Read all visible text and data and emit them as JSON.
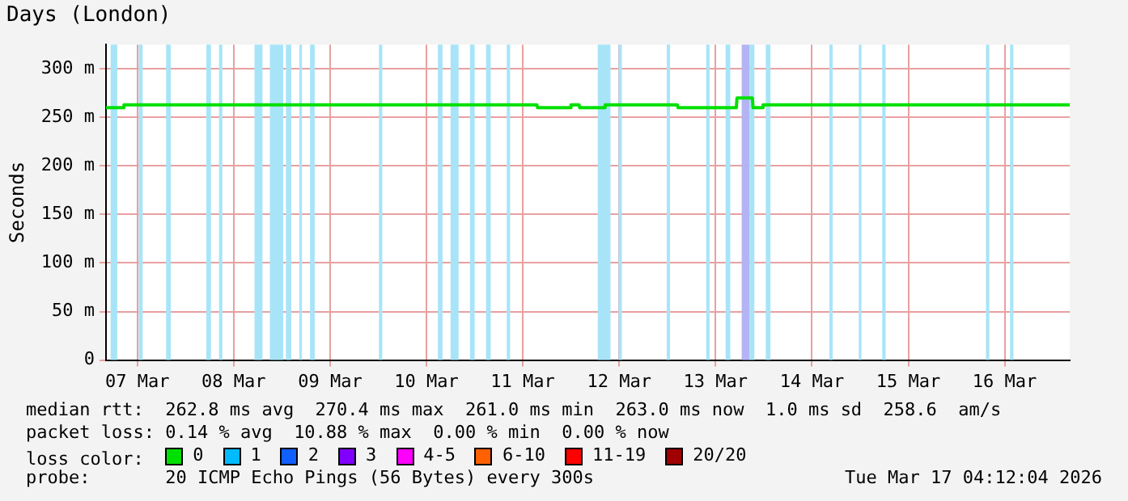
{
  "chart_data": {
    "type": "line",
    "title": "Days (London)",
    "ylabel": "Seconds",
    "xlim": [
      "2026-03-07T04:12",
      "2026-03-17T04:12"
    ],
    "xticks": [
      {
        "value": "2026-03-07T12:00",
        "label": "07 Mar"
      },
      {
        "value": "2026-03-08T12:00",
        "label": "08 Mar"
      },
      {
        "value": "2026-03-09T12:00",
        "label": "09 Mar"
      },
      {
        "value": "2026-03-10T12:00",
        "label": "10 Mar"
      },
      {
        "value": "2026-03-11T12:00",
        "label": "11 Mar"
      },
      {
        "value": "2026-03-12T12:00",
        "label": "12 Mar"
      },
      {
        "value": "2026-03-13T12:00",
        "label": "13 Mar"
      },
      {
        "value": "2026-03-14T12:00",
        "label": "14 Mar"
      },
      {
        "value": "2026-03-15T12:00",
        "label": "15 Mar"
      },
      {
        "value": "2026-03-16T12:00",
        "label": "16 Mar"
      }
    ],
    "ylim": [
      0,
      325
    ],
    "yticks": [
      0,
      {
        "value": 50,
        "label": "50 m"
      },
      {
        "value": 100,
        "label": "100 m"
      },
      {
        "value": 150,
        "label": "150 m"
      },
      {
        "value": 200,
        "label": "200 m"
      },
      {
        "value": 250,
        "label": "250 m"
      },
      {
        "value": 300,
        "label": "300 m"
      }
    ],
    "grid": true,
    "legend": "bottom left",
    "series": [
      {
        "name": "0",
        "color": "#00e000",
        "x": [
          "2026-03-07T04:12",
          "2026-03-07T08:30",
          "2026-03-07T08:40",
          "2026-03-11T15:30",
          "2026-03-11T15:40",
          "2026-03-11T23:50",
          "2026-03-12T00:00",
          "2026-03-12T02:00",
          "2026-03-12T02:10",
          "2026-03-12T08:10",
          "2026-03-12T08:30",
          "2026-03-13T02:30",
          "2026-03-13T02:40",
          "2026-03-13T17:10",
          "2026-03-13T17:20",
          "2026-03-13T21:10",
          "2026-03-13T21:20",
          "2026-03-13T23:40",
          "2026-03-13T23:50",
          "2026-03-17T04:12"
        ],
        "values": [
          260,
          260,
          263,
          263,
          260,
          260,
          263,
          263,
          260,
          260,
          263,
          263,
          260,
          260,
          270,
          270,
          260,
          260,
          263,
          263
        ]
      },
      {
        "name": "1",
        "color": "#00bbff"
      },
      {
        "name": "2",
        "color": "#1060ff"
      },
      {
        "name": "3",
        "color": "#8000ff"
      },
      {
        "name": "4-5",
        "color": "#ff00ff"
      },
      {
        "name": "6-10",
        "color": "#ff6000"
      },
      {
        "name": "11-19",
        "color": "#ff0000"
      },
      {
        "name": "20/20",
        "color": "#a00000"
      }
    ],
    "bands": [
      {
        "axis": "x",
        "from": "2026-03-07T05:20",
        "to": "2026-03-07T07:00",
        "color": "#a8e4f8"
      },
      {
        "axis": "x",
        "from": "2026-03-07T12:20",
        "to": "2026-03-07T13:20",
        "color": "#a8e4f8"
      },
      {
        "axis": "x",
        "from": "2026-03-07T19:10",
        "to": "2026-03-07T20:20",
        "color": "#a8e4f8"
      },
      {
        "axis": "x",
        "from": "2026-03-08T05:10",
        "to": "2026-03-08T06:20",
        "color": "#a8e4f8"
      },
      {
        "axis": "x",
        "from": "2026-03-08T08:20",
        "to": "2026-03-08T09:10",
        "color": "#a8e4f8"
      },
      {
        "axis": "x",
        "from": "2026-03-08T17:10",
        "to": "2026-03-08T19:10",
        "color": "#a8e4f8"
      },
      {
        "axis": "x",
        "from": "2026-03-08T21:00",
        "to": "2026-03-09T00:20",
        "color": "#a8e4f8"
      },
      {
        "axis": "x",
        "from": "2026-03-09T01:00",
        "to": "2026-03-09T02:20",
        "color": "#a8e4f8"
      },
      {
        "axis": "x",
        "from": "2026-03-09T04:20",
        "to": "2026-03-09T05:00",
        "color": "#a8e4f8"
      },
      {
        "axis": "x",
        "from": "2026-03-09T07:00",
        "to": "2026-03-09T08:10",
        "color": "#a8e4f8"
      },
      {
        "axis": "x",
        "from": "2026-03-10T00:10",
        "to": "2026-03-10T01:00",
        "color": "#a8e4f8"
      },
      {
        "axis": "x",
        "from": "2026-03-10T14:50",
        "to": "2026-03-10T16:00",
        "color": "#a8e4f8"
      },
      {
        "axis": "x",
        "from": "2026-03-10T18:00",
        "to": "2026-03-10T20:00",
        "color": "#a8e4f8"
      },
      {
        "axis": "x",
        "from": "2026-03-10T22:50",
        "to": "2026-03-11T00:00",
        "color": "#a8e4f8"
      },
      {
        "axis": "x",
        "from": "2026-03-11T02:50",
        "to": "2026-03-11T04:00",
        "color": "#a8e4f8"
      },
      {
        "axis": "x",
        "from": "2026-03-11T08:00",
        "to": "2026-03-11T08:50",
        "color": "#a8e4f8"
      },
      {
        "axis": "x",
        "from": "2026-03-12T06:40",
        "to": "2026-03-12T09:50",
        "color": "#a8e4f8"
      },
      {
        "axis": "x",
        "from": "2026-03-12T11:50",
        "to": "2026-03-12T12:40",
        "color": "#a8e4f8"
      },
      {
        "axis": "x",
        "from": "2026-03-12T23:50",
        "to": "2026-03-13T00:40",
        "color": "#a8e4f8"
      },
      {
        "axis": "x",
        "from": "2026-03-13T09:40",
        "to": "2026-03-13T10:30",
        "color": "#a8e4f8"
      },
      {
        "axis": "x",
        "from": "2026-03-13T14:30",
        "to": "2026-03-13T15:40",
        "color": "#a8e4f8"
      },
      {
        "axis": "x",
        "from": "2026-03-13T18:30",
        "to": "2026-03-13T20:30",
        "color": "#b4b4f4"
      },
      {
        "axis": "x",
        "from": "2026-03-13T20:30",
        "to": "2026-03-13T21:40",
        "color": "#a8e4f8"
      },
      {
        "axis": "x",
        "from": "2026-03-14T00:30",
        "to": "2026-03-14T01:40",
        "color": "#a8e4f8"
      },
      {
        "axis": "x",
        "from": "2026-03-14T16:20",
        "to": "2026-03-14T17:10",
        "color": "#a8e4f8"
      },
      {
        "axis": "x",
        "from": "2026-03-14T23:40",
        "to": "2026-03-15T00:20",
        "color": "#a8e4f8"
      },
      {
        "axis": "x",
        "from": "2026-03-15T05:30",
        "to": "2026-03-15T06:20",
        "color": "#a8e4f8"
      },
      {
        "axis": "x",
        "from": "2026-03-16T07:20",
        "to": "2026-03-16T08:10",
        "color": "#a8e4f8"
      },
      {
        "axis": "x",
        "from": "2026-03-16T13:20",
        "to": "2026-03-16T14:10",
        "color": "#a8e4f8"
      }
    ],
    "annotations": [
      "median rtt:  262.8 ms avg  270.4 ms max  261.0 ms min  263.0 ms now  1.0 ms sd  258.6  am/s",
      "packet loss: 0.14 % avg  10.88 % max  0.00 % min  0.00 % now",
      "loss color:",
      "probe:       20 ICMP Echo Pings (56 Bytes) every 300s",
      "Tue Mar 17 04:12:04 2026"
    ]
  }
}
